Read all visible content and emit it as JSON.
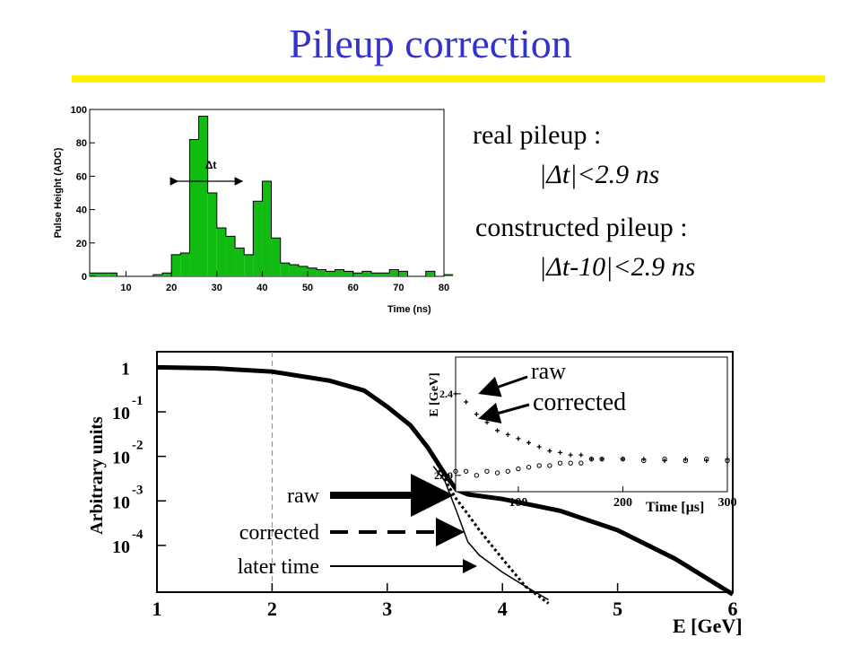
{
  "title": "Pileup correction",
  "text_panel": {
    "real_label": "real pileup :",
    "real_cond": "|Δt|<2.9 ns",
    "constructed_label": "constructed pileup :",
    "constructed_cond": "|Δt-10|<2.9 ns"
  },
  "colors": {
    "title": "#3333cc",
    "rule": "#ffee00",
    "hist_fill": "#11bb11"
  },
  "chart_data": [
    {
      "type": "bar",
      "title": "",
      "xlabel": "Time (ns)",
      "ylabel": "Pulse Height (ADC)",
      "xlim": [
        2,
        80
      ],
      "ylim": [
        0,
        100
      ],
      "xticks": [
        "10",
        "20",
        "30",
        "40",
        "50",
        "60",
        "70",
        "80"
      ],
      "yticks": [
        "0",
        "20",
        "40",
        "60",
        "80",
        "100"
      ],
      "bin_width": 2,
      "bin_edges_start": 2,
      "values": [
        2,
        2,
        2,
        0,
        0,
        0,
        0,
        1,
        2,
        13,
        14,
        82,
        96,
        50,
        29,
        24,
        17,
        13,
        45,
        57,
        23,
        8,
        7,
        6,
        5,
        4,
        3,
        4,
        3,
        2,
        3,
        2,
        2,
        4,
        3,
        0,
        0,
        3,
        0,
        1
      ],
      "annotation": "Δt",
      "grid": false
    },
    {
      "type": "line",
      "title": "",
      "xlabel": "E [GeV]",
      "ylabel": "Arbitrary units",
      "xlim": [
        1,
        6
      ],
      "log_y": true,
      "yticks": [
        "1",
        "10^-1",
        "10^-2",
        "10^-3",
        "10^-4"
      ],
      "xticks": [
        "1",
        "2",
        "3",
        "4",
        "5",
        "6"
      ],
      "vline_x": 2,
      "series": [
        {
          "name": "raw",
          "x": [
            1.0,
            1.5,
            2.0,
            2.5,
            2.8,
            3.0,
            3.2,
            3.35,
            3.5,
            3.6,
            3.7,
            4.0,
            4.5,
            5.0,
            5.5,
            6.0
          ],
          "y": [
            1.0,
            0.95,
            0.8,
            0.5,
            0.3,
            0.13,
            0.05,
            0.016,
            0.004,
            0.0018,
            0.0014,
            0.0011,
            0.0006,
            0.00022,
            5e-05,
            8e-06
          ]
        },
        {
          "name": "corrected",
          "x": [
            3.45,
            3.55,
            3.6,
            3.7,
            3.8,
            4.0,
            4.2,
            4.4
          ],
          "y": [
            0.005,
            0.0018,
            0.0011,
            0.0005,
            0.00022,
            5e-05,
            1.2e-05,
            5e-06
          ]
        },
        {
          "name": "later time",
          "x": [
            3.4,
            3.5,
            3.6,
            3.7,
            3.8,
            4.0,
            4.2,
            4.4
          ],
          "y": [
            0.006,
            0.0028,
            0.0006,
            0.00012,
            6e-05,
            2.5e-05,
            1.2e-05,
            6e-06
          ]
        }
      ],
      "labels": {
        "raw": "raw",
        "corrected": "corrected",
        "later": "later time"
      },
      "inset": {
        "ylabel": "E [GeV]",
        "xlabel": "Time [µs]",
        "xticks": [
          "100",
          "200",
          "300"
        ],
        "yticks": [
          "2.4",
          "2.39"
        ],
        "xlim": [
          40,
          300
        ],
        "ylim": [
          2.388,
          2.4045
        ],
        "series": [
          {
            "name": "raw",
            "x": [
              40,
              50,
              60,
              70,
              80,
              90,
              100,
              110,
              120,
              130,
              140,
              150,
              160,
              170,
              180,
              200,
              220,
              240,
              260,
              280,
              300
            ],
            "y": [
              2.4,
              2.399,
              2.3975,
              2.3965,
              2.3955,
              2.395,
              2.3945,
              2.394,
              2.3935,
              2.393,
              2.3928,
              2.3925,
              2.3925,
              2.392,
              2.392,
              2.392,
              2.392,
              2.3918,
              2.392,
              2.3918,
              2.392
            ]
          },
          {
            "name": "corrected",
            "x": [
              40,
              50,
              60,
              70,
              80,
              90,
              100,
              110,
              120,
              130,
              140,
              150,
              160,
              170,
              180,
              200,
              220,
              240,
              260,
              280,
              300
            ],
            "y": [
              2.3905,
              2.3905,
              2.39,
              2.3905,
              2.3903,
              2.3905,
              2.3908,
              2.391,
              2.3912,
              2.3912,
              2.3915,
              2.3915,
              2.3915,
              2.392,
              2.392,
              2.392,
              2.3918,
              2.392,
              2.3918,
              2.392,
              2.3918
            ]
          }
        ],
        "labels": {
          "raw": "raw",
          "corrected": "corrected"
        }
      }
    }
  ]
}
